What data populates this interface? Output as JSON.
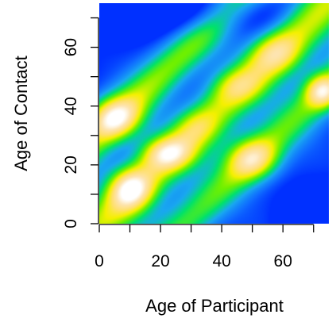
{
  "chart_data": {
    "type": "heatmap",
    "title": "",
    "xlabel": "Age of Participant",
    "ylabel": "Age of Contact",
    "xlim": [
      0,
      75
    ],
    "ylim": [
      0,
      75
    ],
    "x_ticks": [
      0,
      10,
      20,
      30,
      40,
      50,
      60,
      70
    ],
    "x_tick_labels": [
      "0",
      "20",
      "40",
      "60"
    ],
    "y_ticks": [
      0,
      10,
      20,
      30,
      40,
      50,
      60,
      70
    ],
    "y_tick_labels": [
      "0",
      "20",
      "40",
      "60"
    ],
    "color_scale": [
      "#0030ff",
      "#1070ff",
      "#19a8f0",
      "#00e26a",
      "#6ef000",
      "#f5f000",
      "#ffe070",
      "#fde4b0",
      "#ffffff"
    ],
    "value_range": [
      0,
      1
    ],
    "value_field": {
      "diagonal_ridge": {
        "offset": 0,
        "spread": 8.5,
        "weight": 0.58
      },
      "parent_child_ridges": [
        {
          "offset": 30,
          "spread": 7.5,
          "weight": 0.52
        },
        {
          "offset": -28,
          "spread": 7.5,
          "weight": 0.48
        }
      ],
      "hotspots": [
        {
          "x": 10,
          "y": 12,
          "sx": 5,
          "sy": 5,
          "weight": 0.55
        },
        {
          "x": 22,
          "y": 24,
          "sx": 6,
          "sy": 4,
          "weight": 0.45
        },
        {
          "x": 5,
          "y": 36,
          "sx": 6,
          "sy": 5,
          "weight": 0.55
        },
        {
          "x": 50,
          "y": 22,
          "sx": 6,
          "sy": 5,
          "weight": 0.5
        },
        {
          "x": 73,
          "y": 45,
          "sx": 4,
          "sy": 4,
          "weight": 0.55
        },
        {
          "x": 45,
          "y": 47,
          "sx": 6,
          "sy": 4,
          "weight": 0.2
        },
        {
          "x": 58,
          "y": 58,
          "sx": 6,
          "sy": 5,
          "weight": 0.3
        },
        {
          "x": 32,
          "y": 33,
          "sx": 5,
          "sy": 4,
          "weight": 0.15
        }
      ],
      "cold_spots": [
        {
          "x": 32,
          "y": 72,
          "sx": 20,
          "sy": 6,
          "weight": 0.25
        },
        {
          "x": 72,
          "y": 0,
          "sx": 8,
          "sy": 8,
          "weight": 0.3
        }
      ]
    }
  }
}
